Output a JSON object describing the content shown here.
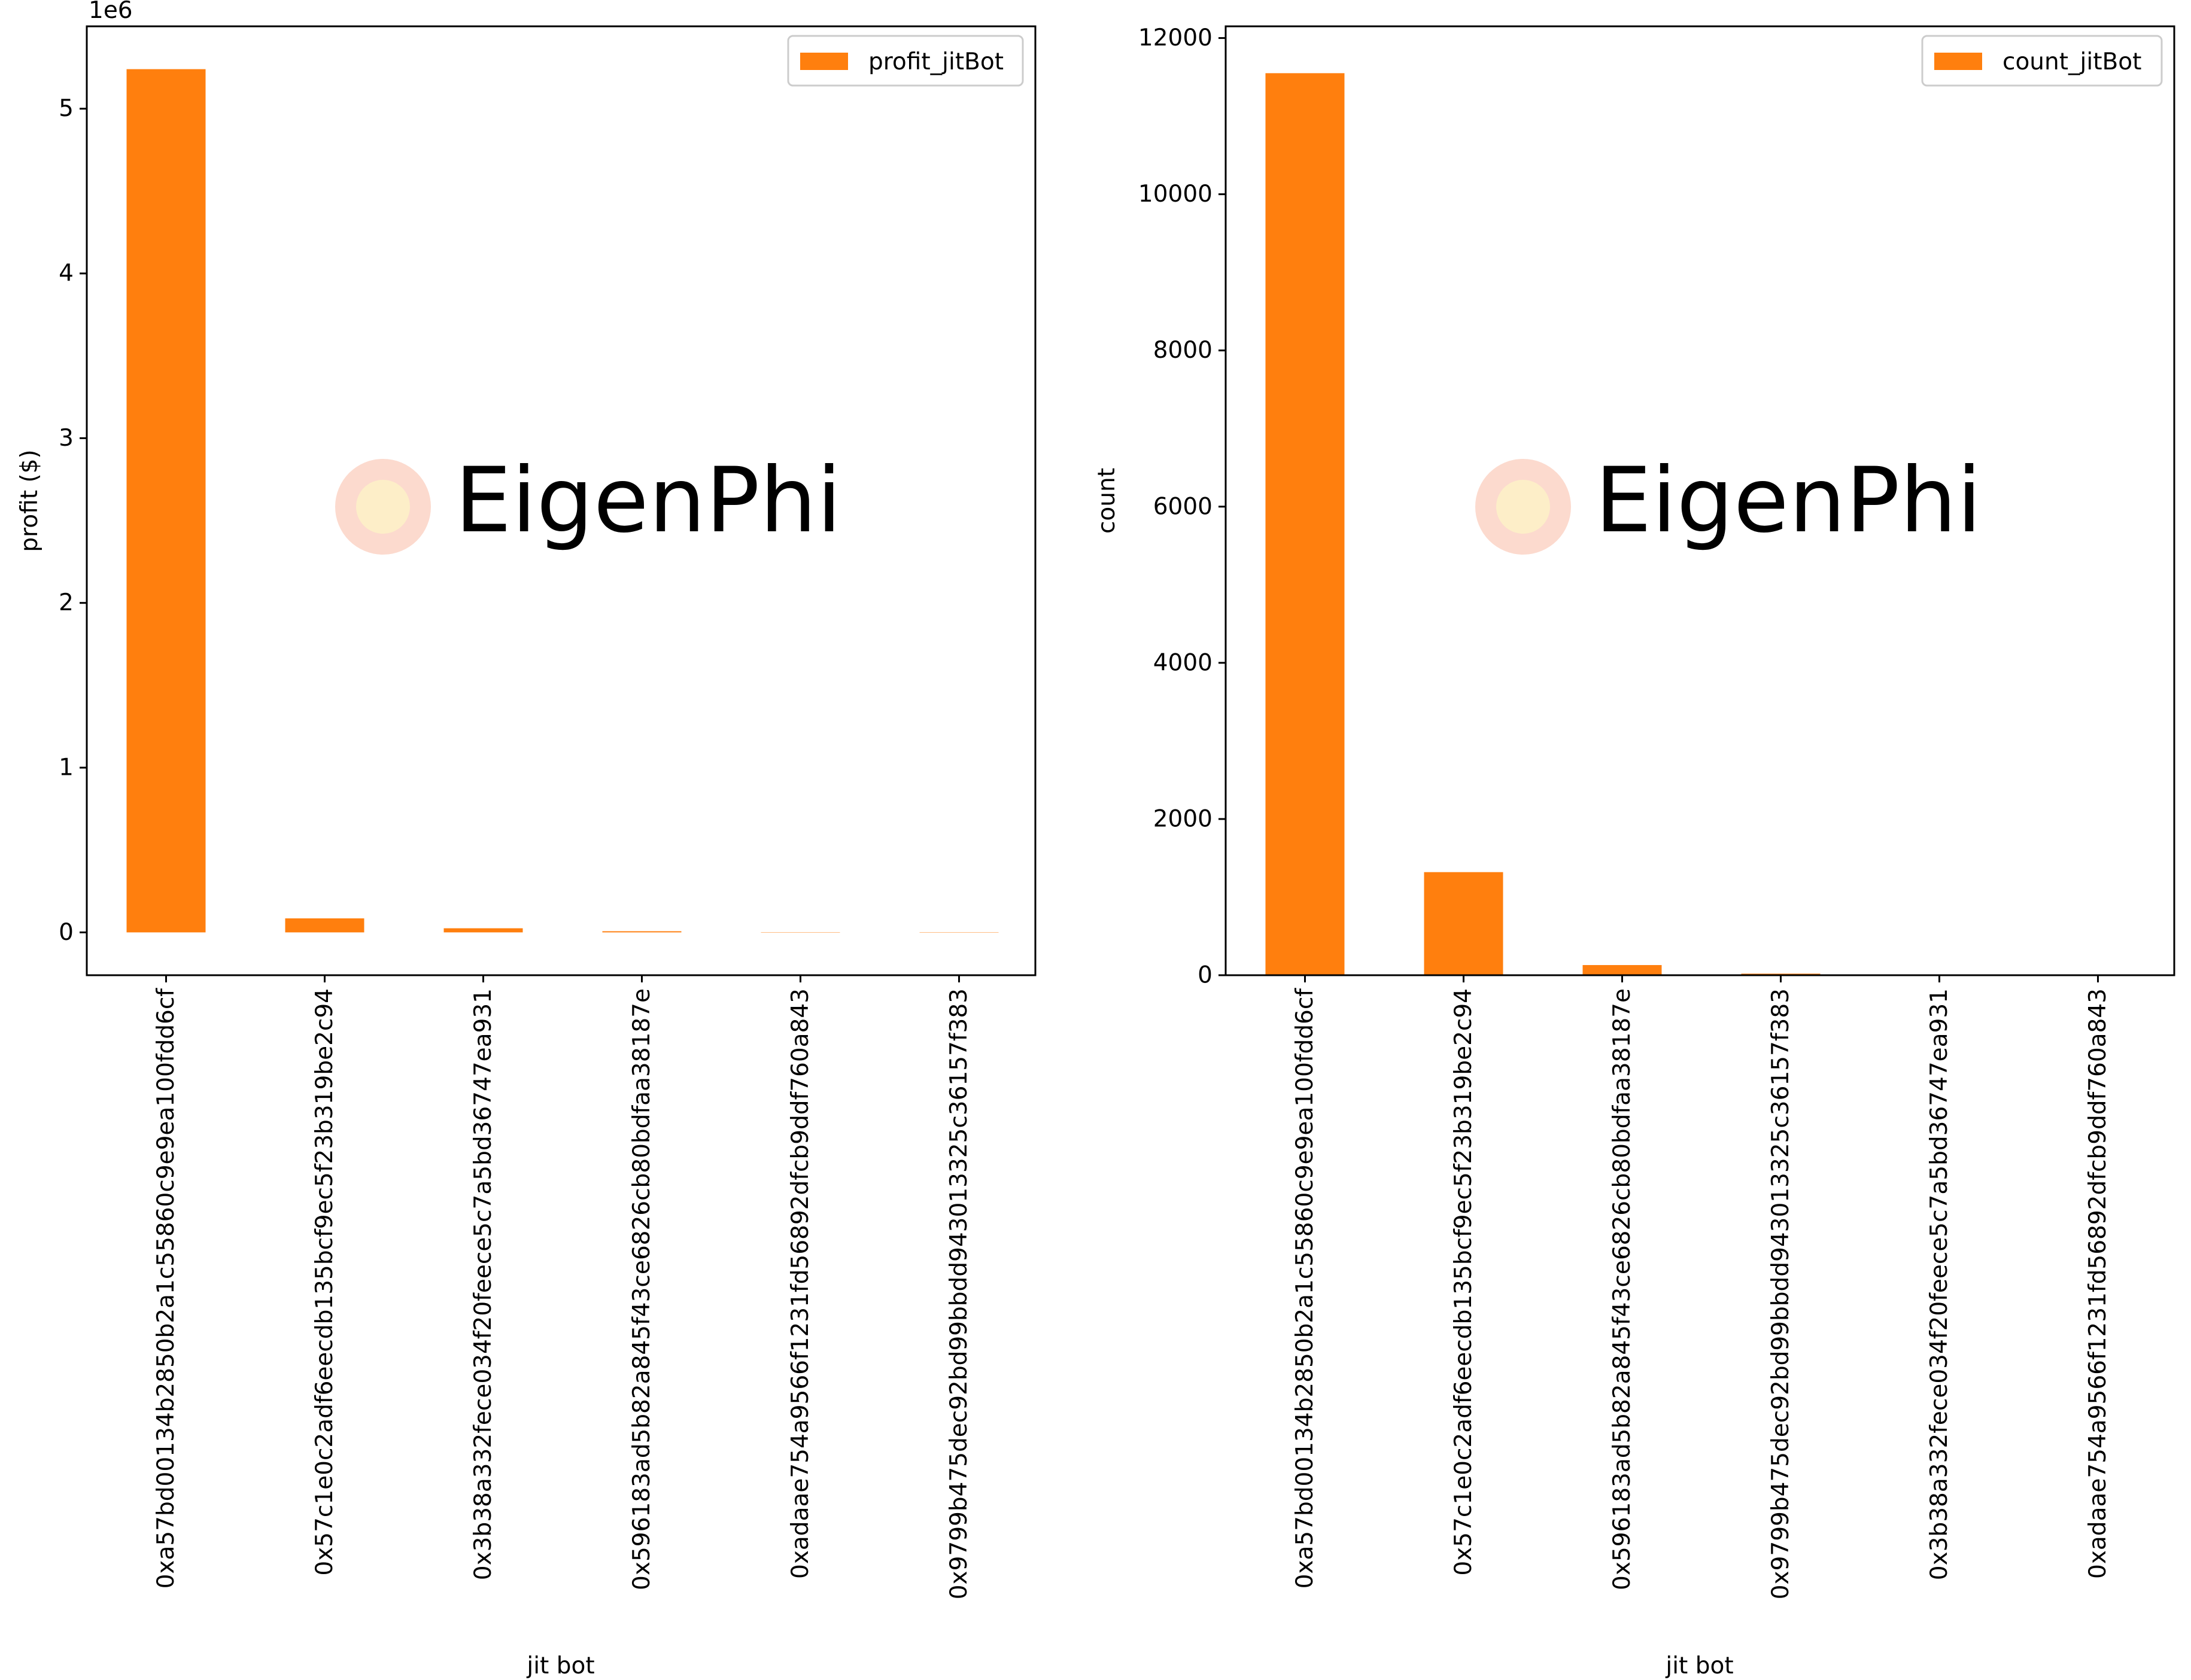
{
  "colors": {
    "bar": "#ff7f0e",
    "axes": "#000000",
    "legend_border": "#cccccc",
    "watermark_text": "#e3e3e3",
    "watermark_logo_outer": "#fbd4c6",
    "watermark_logo_inner": "#fdf0c8"
  },
  "watermark": {
    "text": "EigenPhi"
  },
  "chart_data": [
    {
      "type": "bar",
      "title": "",
      "xlabel": "jit bot",
      "ylabel": "profit ($)",
      "y_offset_label": "1e6",
      "y_scale": 1000000,
      "ylim": [
        -260000,
        5500000
      ],
      "yticks": [
        0,
        1000000,
        2000000,
        3000000,
        4000000,
        5000000
      ],
      "ytick_labels": [
        "0",
        "1",
        "2",
        "3",
        "4",
        "5"
      ],
      "legend": {
        "entries": [
          "profit_jitBot"
        ],
        "placement": "top-right"
      },
      "grid": false,
      "categories": [
        "0xa57bd00134b2850b2a1c55860c9e9ea100fdd6cf",
        "0x57c1e0c2adf6eecdb135bcf9ec5f23b319be2c94",
        "0x3b38a332fece034f20feece5c7a5bd36747ea931",
        "0x596183ad5b82a845f43ce6826cb80bdfaa38187e",
        "0xadaae754a9566f1231fd56892dfcb9ddf760a843",
        "0x9799b475dec92bd99bbdd943013325c36157f383"
      ],
      "series": [
        {
          "name": "profit_jitBot",
          "values": [
            5240000,
            85000,
            25000,
            7000,
            300,
            100
          ]
        }
      ]
    },
    {
      "type": "bar",
      "title": "",
      "xlabel": "jit bot",
      "ylabel": "count",
      "y_offset_label": "",
      "y_scale": 1,
      "ylim": [
        0,
        12150
      ],
      "yticks": [
        0,
        2000,
        4000,
        6000,
        8000,
        10000,
        12000
      ],
      "ytick_labels": [
        "0",
        "2000",
        "4000",
        "6000",
        "8000",
        "10000",
        "12000"
      ],
      "legend": {
        "entries": [
          "count_jitBot"
        ],
        "placement": "top-right"
      },
      "grid": false,
      "categories": [
        "0xa57bd00134b2850b2a1c55860c9e9ea100fdd6cf",
        "0x57c1e0c2adf6eecdb135bcf9ec5f23b319be2c94",
        "0x596183ad5b82a845f43ce6826cb80bdfaa38187e",
        "0x9799b475dec92bd99bbdd943013325c36157f383",
        "0x3b38a332fece034f20feece5c7a5bd36747ea931",
        "0xadaae754a9566f1231fd56892dfcb9ddf760a843"
      ],
      "series": [
        {
          "name": "count_jitBot",
          "values": [
            11550,
            1320,
            130,
            20,
            5,
            2
          ]
        }
      ]
    }
  ]
}
